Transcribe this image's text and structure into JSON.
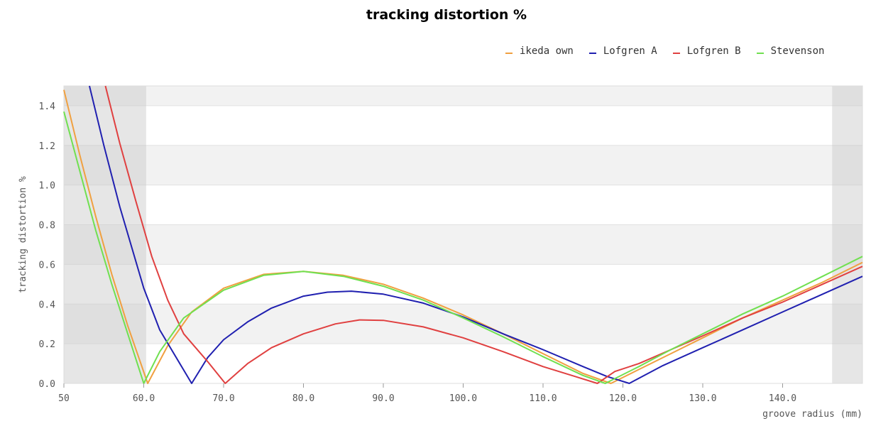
{
  "chart_data": {
    "type": "line",
    "title": "tracking distortion %",
    "xlabel": "groove radius (mm)",
    "ylabel": "tracking distortion %",
    "xlim": [
      50,
      150
    ],
    "ylim": [
      0,
      1.5
    ],
    "x_tick_values": [
      50,
      60,
      70,
      80,
      90,
      100,
      110,
      120,
      130,
      140
    ],
    "x_tick_labels": [
      "50",
      "60.0",
      "70.0",
      "80.0",
      "90.0",
      "100.0",
      "110.0",
      "120.0",
      "130.0",
      "140.0"
    ],
    "y_tick_values": [
      0,
      0.2,
      0.4,
      0.6,
      0.8,
      1.0,
      1.2,
      1.4
    ],
    "y_tick_labels": [
      "0.0",
      "0.2",
      "0.4",
      "0.6",
      "0.8",
      "1.0",
      "1.2",
      "1.4"
    ],
    "grid": "horizontal alternating bands",
    "shaded_regions": [
      [
        50,
        60.3
      ],
      [
        146.2,
        150
      ]
    ],
    "legend_position": "top-right",
    "series": [
      {
        "name": "ikeda own",
        "color": "#f0a040",
        "x": [
          50,
          52,
          54,
          56,
          58,
          60.5,
          63,
          66,
          70,
          75,
          80,
          85,
          90,
          95,
          100,
          105,
          110,
          115,
          118.5,
          122,
          126,
          130,
          135,
          140,
          145,
          150
        ],
        "y": [
          1.48,
          1.15,
          0.84,
          0.55,
          0.29,
          0.0,
          0.19,
          0.36,
          0.48,
          0.55,
          0.565,
          0.545,
          0.5,
          0.43,
          0.345,
          0.25,
          0.15,
          0.05,
          0.0,
          0.07,
          0.15,
          0.23,
          0.33,
          0.42,
          0.51,
          0.61
        ]
      },
      {
        "name": "Lofgren A",
        "color": "#2020b0",
        "x": [
          53.2,
          55,
          57,
          60,
          62,
          66,
          68,
          70,
          73,
          76,
          80,
          83,
          86,
          90,
          95,
          100,
          105,
          110,
          115,
          118,
          120.8,
          125,
          130,
          135,
          140,
          145,
          150
        ],
        "y": [
          1.5,
          1.2,
          0.89,
          0.48,
          0.27,
          0.0,
          0.13,
          0.22,
          0.31,
          0.38,
          0.44,
          0.46,
          0.465,
          0.45,
          0.405,
          0.335,
          0.25,
          0.17,
          0.085,
          0.035,
          0.0,
          0.09,
          0.18,
          0.27,
          0.36,
          0.45,
          0.54
        ]
      },
      {
        "name": "Lofgren B",
        "color": "#e04040",
        "x": [
          55.2,
          57,
          59,
          61,
          63,
          65,
          68,
          70.2,
          73,
          76,
          80,
          84,
          87,
          90,
          95,
          100,
          105,
          110,
          114,
          116.8,
          119,
          122,
          126,
          130,
          135,
          140,
          145,
          150
        ],
        "y": [
          1.5,
          1.21,
          0.92,
          0.64,
          0.42,
          0.25,
          0.11,
          0.0,
          0.1,
          0.18,
          0.25,
          0.3,
          0.32,
          0.318,
          0.285,
          0.23,
          0.16,
          0.085,
          0.035,
          0.0,
          0.06,
          0.1,
          0.17,
          0.24,
          0.33,
          0.41,
          0.5,
          0.59
        ]
      },
      {
        "name": "Stevenson",
        "color": "#70e050",
        "x": [
          50,
          52,
          54,
          56,
          58,
          60,
          62,
          65,
          70,
          75,
          80,
          85,
          90,
          95,
          100,
          105,
          110,
          115,
          117.8,
          122,
          126,
          130,
          135,
          140,
          145,
          150
        ],
        "y": [
          1.37,
          1.07,
          0.77,
          0.5,
          0.25,
          0.0,
          0.16,
          0.33,
          0.47,
          0.545,
          0.565,
          0.54,
          0.49,
          0.42,
          0.33,
          0.235,
          0.135,
          0.04,
          0.0,
          0.085,
          0.17,
          0.25,
          0.35,
          0.44,
          0.54,
          0.64
        ]
      }
    ]
  }
}
